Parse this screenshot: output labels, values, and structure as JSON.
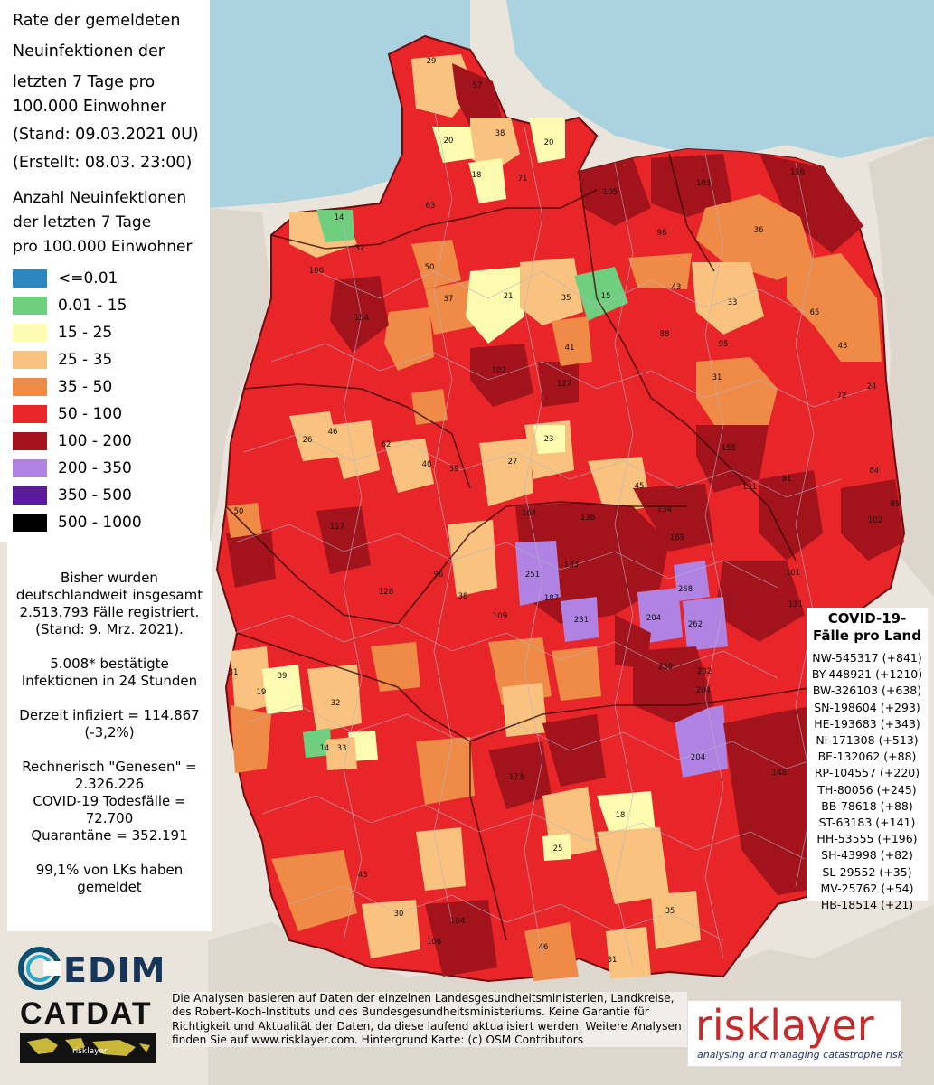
{
  "title_lines": [
    "Rate der gemeldeten",
    "Neuinfektionen der",
    "letzten 7 Tage pro",
    "100.000 Einwohner",
    "(Stand: 09.03.2021 0U)",
    "(Erstellt: 08.03. 23:00)"
  ],
  "legend": {
    "title_lines": [
      "Anzahl Neuinfektionen",
      "der letzten 7 Tage",
      "pro 100.000 Einwohner"
    ],
    "items": [
      {
        "label": "<=0.01",
        "color": "#2e86c1"
      },
      {
        "label": "0.01 - 15",
        "color": "#6fcf7f"
      },
      {
        "label": "15 - 25",
        "color": "#fdfbb0"
      },
      {
        "label": "25 - 35",
        "color": "#f9c27e"
      },
      {
        "label": "35 - 50",
        "color": "#ef8a47"
      },
      {
        "label": "50 - 100",
        "color": "#e8262a"
      },
      {
        "label": "100 - 200",
        "color": "#a3131c"
      },
      {
        "label": "200 - 350",
        "color": "#b083e2"
      },
      {
        "label": "350 - 500",
        "color": "#5b1c9b"
      },
      {
        "label": "500 - 1000",
        "color": "#000000"
      }
    ]
  },
  "stats": {
    "total_lines": [
      "Bisher wurden",
      "deutschlandweit insgesamt",
      "2.513.793 Fälle registriert.",
      "(Stand: 9. Mrz. 2021)."
    ],
    "daily_lines": [
      "5.008* bestätigte",
      "Infektionen in 24 Stunden"
    ],
    "infected_lines": [
      "Derzeit infiziert = 114.867",
      "(-3,2%)"
    ],
    "recovered_lines": [
      "Rechnerisch \"Genesen\" =",
      "2.326.226",
      "COVID-19 Todesfälle =",
      "72.700",
      "Quarantäne = 352.191"
    ],
    "reported_lines": [
      "99,1% von LKs haben",
      "gemeldet"
    ]
  },
  "land_box": {
    "title_lines": [
      "COVID-19-",
      "Fälle pro Land"
    ],
    "rows": [
      "NW-545317 (+841)",
      "BY-448921 (+1210)",
      "BW-326103 (+638)",
      "SN-198604 (+293)",
      "HE-193683 (+343)",
      "NI-171308 (+513)",
      "BE-132062 (+88)",
      "RP-104557 (+220)",
      "TH-80056 (+245)",
      "BB-78618 (+88)",
      "ST-63183 (+141)",
      "HH-53555 (+196)",
      "SH-43998 (+82)",
      "SL-29552 (+35)",
      "MV-25762 (+54)",
      "HB-18514 (+21)"
    ]
  },
  "disclaimer_lines": [
    "Die Analysen basieren auf Daten der einzelnen Landesgesundheitsministerien, Landkreise,",
    "des Robert-Koch-Instituts und des Bundesgesundheitsministeriums. Keine Garantie für",
    "Richtigkeit und Aktualität der Daten, da diese laufend aktualisiert werden. Weitere Analysen",
    "finden Sie auf www.risklayer.com. Hintergrund Karte: (c) OSM Contributors"
  ],
  "logos": {
    "edim": "EDIM",
    "catdat": "CATDAT",
    "catdat_sub": "risklayer",
    "risklayer": "risklayer",
    "risklayer_tagline": "analysing and managing catastrophe risk"
  },
  "map_labels": [
    {
      "text": "29"
    },
    {
      "text": "57"
    },
    {
      "text": "38"
    },
    {
      "text": "20"
    },
    {
      "text": "20"
    },
    {
      "text": "18"
    },
    {
      "text": "71"
    },
    {
      "text": "105"
    },
    {
      "text": "103"
    },
    {
      "text": "116"
    },
    {
      "text": "14"
    },
    {
      "text": "32"
    },
    {
      "text": "63"
    },
    {
      "text": "98"
    },
    {
      "text": "36"
    },
    {
      "text": "50"
    },
    {
      "text": "37"
    },
    {
      "text": "21"
    },
    {
      "text": "35"
    },
    {
      "text": "15"
    },
    {
      "text": "43"
    },
    {
      "text": "33"
    },
    {
      "text": "100"
    },
    {
      "text": "154"
    },
    {
      "text": "102"
    },
    {
      "text": "127"
    },
    {
      "text": "41"
    },
    {
      "text": "88"
    },
    {
      "text": "95"
    },
    {
      "text": "65"
    },
    {
      "text": "43"
    },
    {
      "text": "72"
    },
    {
      "text": "31"
    },
    {
      "text": "24"
    },
    {
      "text": "26"
    },
    {
      "text": "46"
    },
    {
      "text": "62"
    },
    {
      "text": "40"
    },
    {
      "text": "23"
    },
    {
      "text": "27"
    },
    {
      "text": "155"
    },
    {
      "text": "91"
    },
    {
      "text": "84"
    },
    {
      "text": "39"
    },
    {
      "text": "45"
    },
    {
      "text": "134"
    },
    {
      "text": "131"
    },
    {
      "text": "102"
    },
    {
      "text": "85"
    },
    {
      "text": "50"
    },
    {
      "text": "117"
    },
    {
      "text": "164"
    },
    {
      "text": "136"
    },
    {
      "text": "189"
    },
    {
      "text": "251"
    },
    {
      "text": "187"
    },
    {
      "text": "133"
    },
    {
      "text": "268"
    },
    {
      "text": "204"
    },
    {
      "text": "262"
    },
    {
      "text": "231"
    },
    {
      "text": "101"
    },
    {
      "text": "111"
    },
    {
      "text": "128"
    },
    {
      "text": "96"
    },
    {
      "text": "109"
    },
    {
      "text": "38"
    },
    {
      "text": "259"
    },
    {
      "text": "282"
    },
    {
      "text": "204"
    },
    {
      "text": "204"
    },
    {
      "text": "31"
    },
    {
      "text": "19"
    },
    {
      "text": "39"
    },
    {
      "text": "32"
    },
    {
      "text": "14"
    },
    {
      "text": "33"
    },
    {
      "text": "173"
    },
    {
      "text": "148"
    },
    {
      "text": "18"
    },
    {
      "text": "25"
    },
    {
      "text": "104"
    },
    {
      "text": "106"
    },
    {
      "text": "43"
    },
    {
      "text": "30"
    },
    {
      "text": "31"
    },
    {
      "text": "46"
    },
    {
      "text": "35"
    }
  ]
}
